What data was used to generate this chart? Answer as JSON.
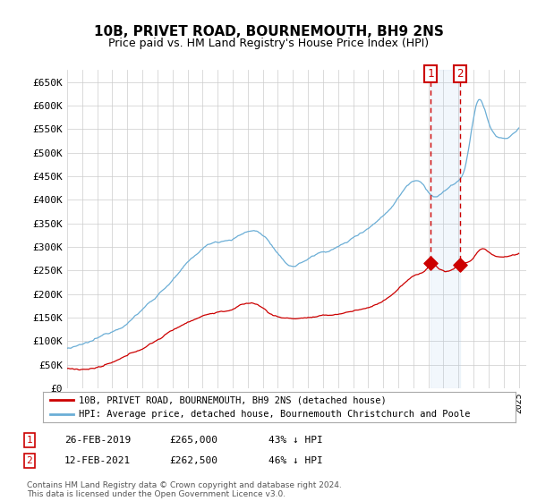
{
  "title": "10B, PRIVET ROAD, BOURNEMOUTH, BH9 2NS",
  "subtitle": "Price paid vs. HM Land Registry's House Price Index (HPI)",
  "ylabel_ticks": [
    "£0",
    "£50K",
    "£100K",
    "£150K",
    "£200K",
    "£250K",
    "£300K",
    "£350K",
    "£400K",
    "£450K",
    "£500K",
    "£550K",
    "£600K",
    "£650K"
  ],
  "ytick_values": [
    0,
    50000,
    100000,
    150000,
    200000,
    250000,
    300000,
    350000,
    400000,
    450000,
    500000,
    550000,
    600000,
    650000
  ],
  "xmin": 1995.0,
  "xmax": 2025.5,
  "ymin": 0,
  "ymax": 675000,
  "hpi_color": "#6baed6",
  "price_color": "#cc0000",
  "marker1_date": 2019.15,
  "marker1_price": 265000,
  "marker2_date": 2021.12,
  "marker2_price": 262500,
  "legend_label_price": "10B, PRIVET ROAD, BOURNEMOUTH, BH9 2NS (detached house)",
  "legend_label_hpi": "HPI: Average price, detached house, Bournemouth Christchurch and Poole",
  "table_rows": [
    {
      "num": "1",
      "date": "26-FEB-2019",
      "price": "£265,000",
      "pct": "43% ↓ HPI"
    },
    {
      "num": "2",
      "date": "12-FEB-2021",
      "price": "£262,500",
      "pct": "46% ↓ HPI"
    }
  ],
  "footnote": "Contains HM Land Registry data © Crown copyright and database right 2024.\nThis data is licensed under the Open Government Licence v3.0.",
  "background_color": "#ffffff",
  "grid_color": "#cccccc",
  "shade_color": "#ddeeff"
}
